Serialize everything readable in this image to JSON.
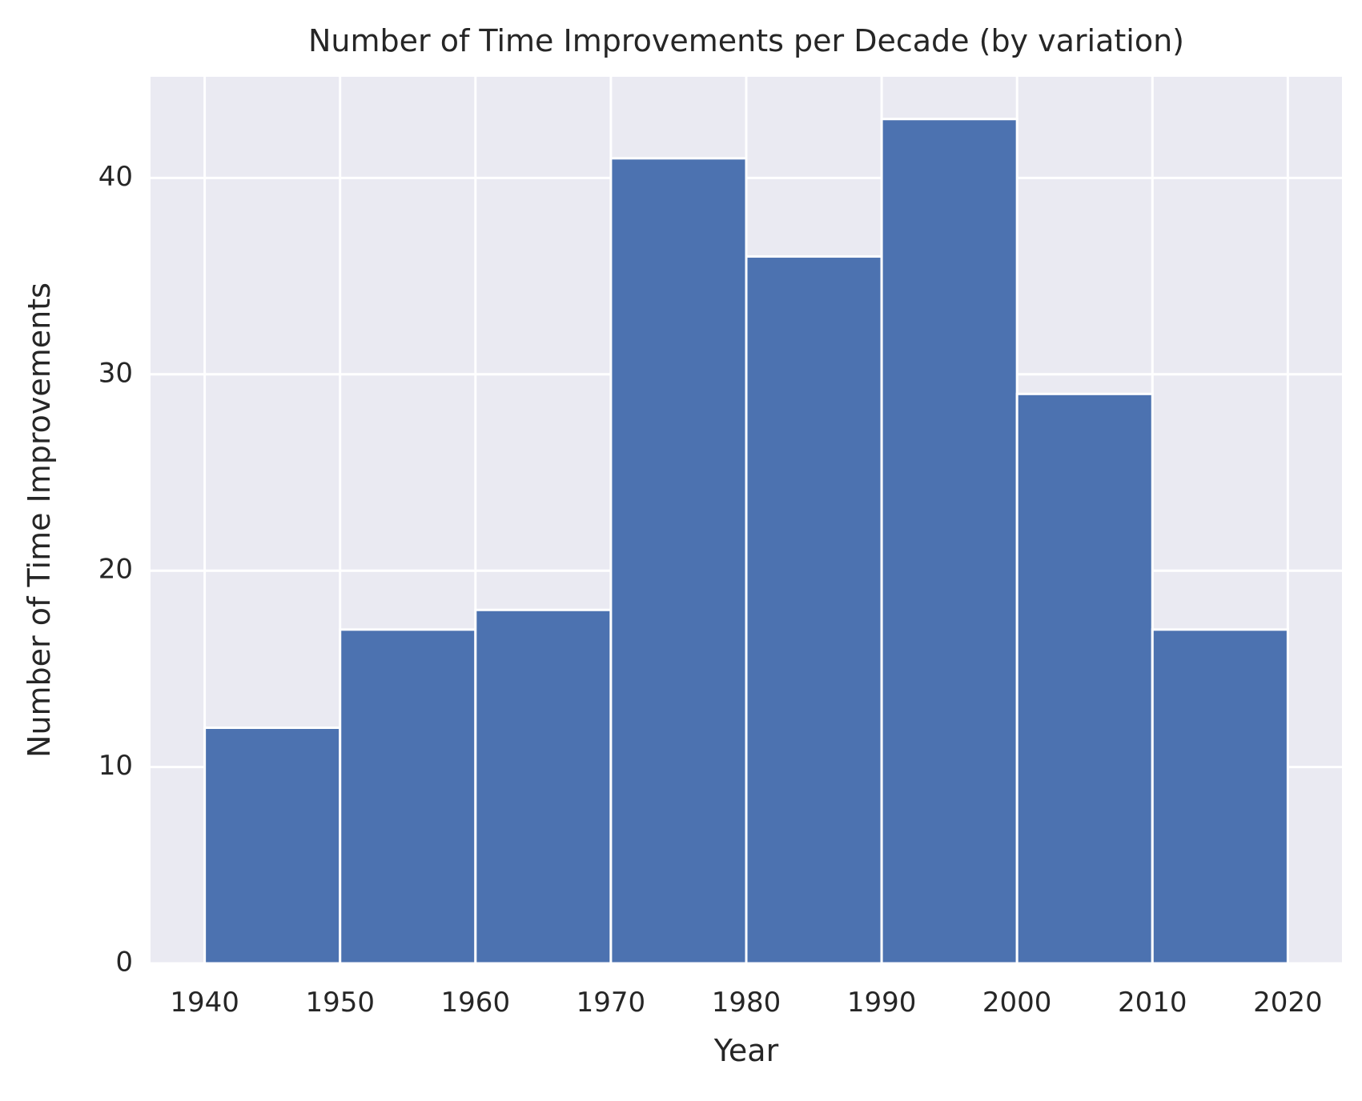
{
  "chart_data": {
    "type": "bar",
    "title": "Number of Time Improvements per Decade (by variation)",
    "xlabel": "Year",
    "ylabel": "Number of Time Improvements",
    "bin_edges": [
      1940,
      1950,
      1960,
      1970,
      1980,
      1990,
      2000,
      2010,
      2020
    ],
    "values": [
      12,
      17,
      18,
      41,
      36,
      43,
      29,
      17
    ],
    "xticks": [
      1940,
      1950,
      1960,
      1970,
      1980,
      1990,
      2000,
      2010,
      2020
    ],
    "xtick_labels": [
      "1940",
      "1950",
      "1960",
      "1970",
      "1980",
      "1990",
      "2000",
      "2010",
      "2020"
    ],
    "yticks": [
      0,
      10,
      20,
      30,
      40
    ],
    "ytick_labels": [
      "0",
      "10",
      "20",
      "30",
      "40"
    ],
    "xlim": [
      1936,
      2024
    ],
    "ylim": [
      0,
      45.15
    ],
    "grid": true,
    "legend": "none",
    "colors": {
      "bar": "#4c72b0",
      "plot_background": "#eaeaf2",
      "grid": "#ffffff",
      "text": "#262626"
    }
  }
}
